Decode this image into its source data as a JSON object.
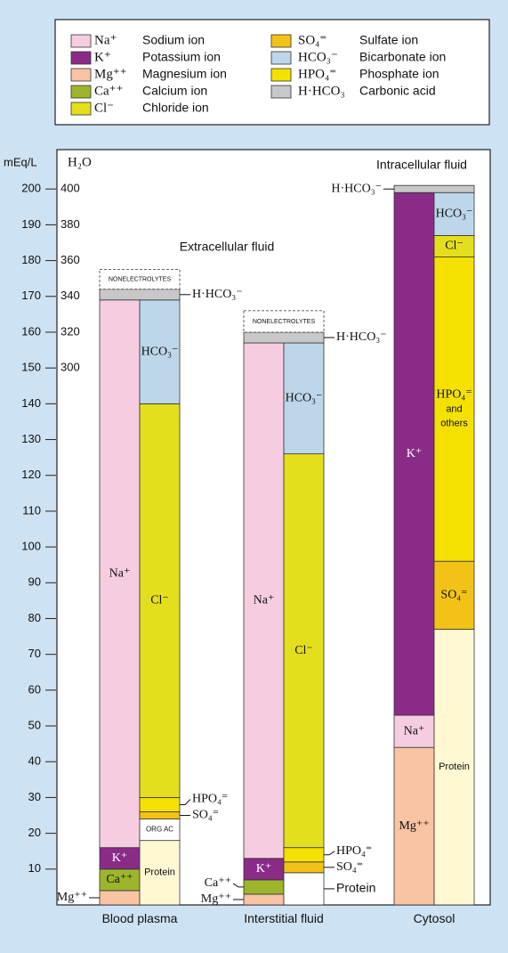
{
  "chart_data": {
    "type": "bar",
    "ylabel": "mEq/L",
    "y2label": "H₂O",
    "ylim": [
      0,
      211
    ],
    "yticks": [
      10,
      20,
      30,
      40,
      50,
      60,
      70,
      80,
      90,
      100,
      110,
      120,
      130,
      140,
      150,
      160,
      170,
      180,
      190,
      200
    ],
    "y2lim": [
      0,
      422
    ],
    "y2ticks": [
      300,
      320,
      340,
      360,
      380,
      400
    ],
    "annotations": [
      "Extracellular fluid",
      "Intracellular fluid"
    ],
    "legend": [
      {
        "symbol": "Na⁺",
        "name": "Sodium ion",
        "color": "#f6cde0"
      },
      {
        "symbol": "K⁺",
        "name": "Potassium ion",
        "color": "#8b2b88"
      },
      {
        "symbol": "Mg⁺⁺",
        "name": "Magnesium ion",
        "color": "#f8c4a4"
      },
      {
        "symbol": "Ca⁺⁺",
        "name": "Calcium ion",
        "color": "#9db52c"
      },
      {
        "symbol": "Cl⁻",
        "name": "Chloride ion",
        "color": "#e4df1c"
      },
      {
        "symbol": "SO₄⁼",
        "name": "Sulfate ion",
        "color": "#f2c316"
      },
      {
        "symbol": "HCO₃⁻",
        "name": "Bicarbonate ion",
        "color": "#bdd6ea"
      },
      {
        "symbol": "HPO₄⁼",
        "name": "Phosphate ion",
        "color": "#f5e100"
      },
      {
        "symbol": "H·HCO₃",
        "name": "Carbonic acid",
        "color": "#c8c8c8"
      }
    ],
    "groups": [
      {
        "category": "Blood plasma",
        "cations": [
          {
            "value": 4,
            "color": "#f8c4a4",
            "callout": "Mg⁺⁺"
          },
          {
            "value": 6,
            "color": "#9db52c",
            "label": "Ca⁺⁺"
          },
          {
            "value": 6,
            "color": "#8b2b88",
            "label": "K⁺"
          },
          {
            "value": 153,
            "color": "#f6cde0",
            "label": "Na⁺"
          }
        ],
        "anions": [
          {
            "value": 18,
            "color": "#fff8d2",
            "label": "Protein"
          },
          {
            "value": 6,
            "color": "#ffffff",
            "label": "ORG AC"
          },
          {
            "value": 2,
            "color": "#f2c316",
            "callout": "SO₄⁼"
          },
          {
            "value": 4,
            "color": "#f5e100",
            "callout": "HPO₄⁼"
          },
          {
            "value": 110,
            "color": "#e4df1c",
            "label": "Cl⁻"
          },
          {
            "value": 29,
            "color": "#bdd6ea",
            "label": "HCO₃⁻"
          }
        ],
        "top": [
          {
            "value": 3,
            "color": "#c8c8c8",
            "callout": "H·HCO₃⁻",
            "callout_side": "right"
          },
          {
            "value": 5.5,
            "color": "#ffffff",
            "label": "NONELECTROLYTES",
            "dashed": true
          }
        ]
      },
      {
        "category": "Interstitial fluid",
        "cations": [
          {
            "value": 3,
            "color": "#f8c4a4",
            "callout": "Mg⁺⁺"
          },
          {
            "value": 4,
            "color": "#9db52c",
            "callout": "Ca⁺⁺"
          },
          {
            "value": 6,
            "color": "#8b2b88",
            "label": "K⁺"
          },
          {
            "value": 144,
            "color": "#f6cde0",
            "label": "Na⁺"
          }
        ],
        "anions": [
          {
            "value": 9,
            "color": "#ffffff",
            "callout": "Protein"
          },
          {
            "value": 3,
            "color": "#f2c316",
            "callout": "SO₄⁼"
          },
          {
            "value": 4,
            "color": "#f5e100",
            "callout": "HPO₄⁼"
          },
          {
            "value": 110,
            "color": "#e4df1c",
            "label": "Cl⁻"
          },
          {
            "value": 31,
            "color": "#bdd6ea",
            "label": "HCO₃⁻"
          }
        ],
        "top": [
          {
            "value": 3,
            "color": "#c8c8c8",
            "callout": "H·HCO₃⁻",
            "callout_side": "right"
          },
          {
            "value": 6,
            "color": "#ffffff",
            "label": "NONELECTROLYTES",
            "dashed": true
          }
        ]
      },
      {
        "category": "Cytosol",
        "cations": [
          {
            "value": 44,
            "color": "#f8c4a4",
            "label": "Mg⁺⁺"
          },
          {
            "value": 9,
            "color": "#f6cde0",
            "label": "Na⁺"
          },
          {
            "value": 146,
            "color": "#8b2b88",
            "label": "K⁺"
          }
        ],
        "anions": [
          {
            "value": 77,
            "color": "#fff8d2",
            "label": "Protein"
          },
          {
            "value": 19,
            "color": "#f2c316",
            "label": "SO₄⁼"
          },
          {
            "value": 85,
            "color": "#f5e100",
            "label": [
              "HPO₄⁼",
              "and",
              "others"
            ]
          },
          {
            "value": 6,
            "color": "#e4df1c",
            "label": "Cl⁻"
          },
          {
            "value": 12,
            "color": "#bdd6ea",
            "label": "HCO₃⁻"
          }
        ],
        "top": [
          {
            "value": 2,
            "color": "#c8c8c8",
            "callout": "H·HCO₃⁻",
            "callout_side": "left"
          }
        ]
      }
    ]
  }
}
